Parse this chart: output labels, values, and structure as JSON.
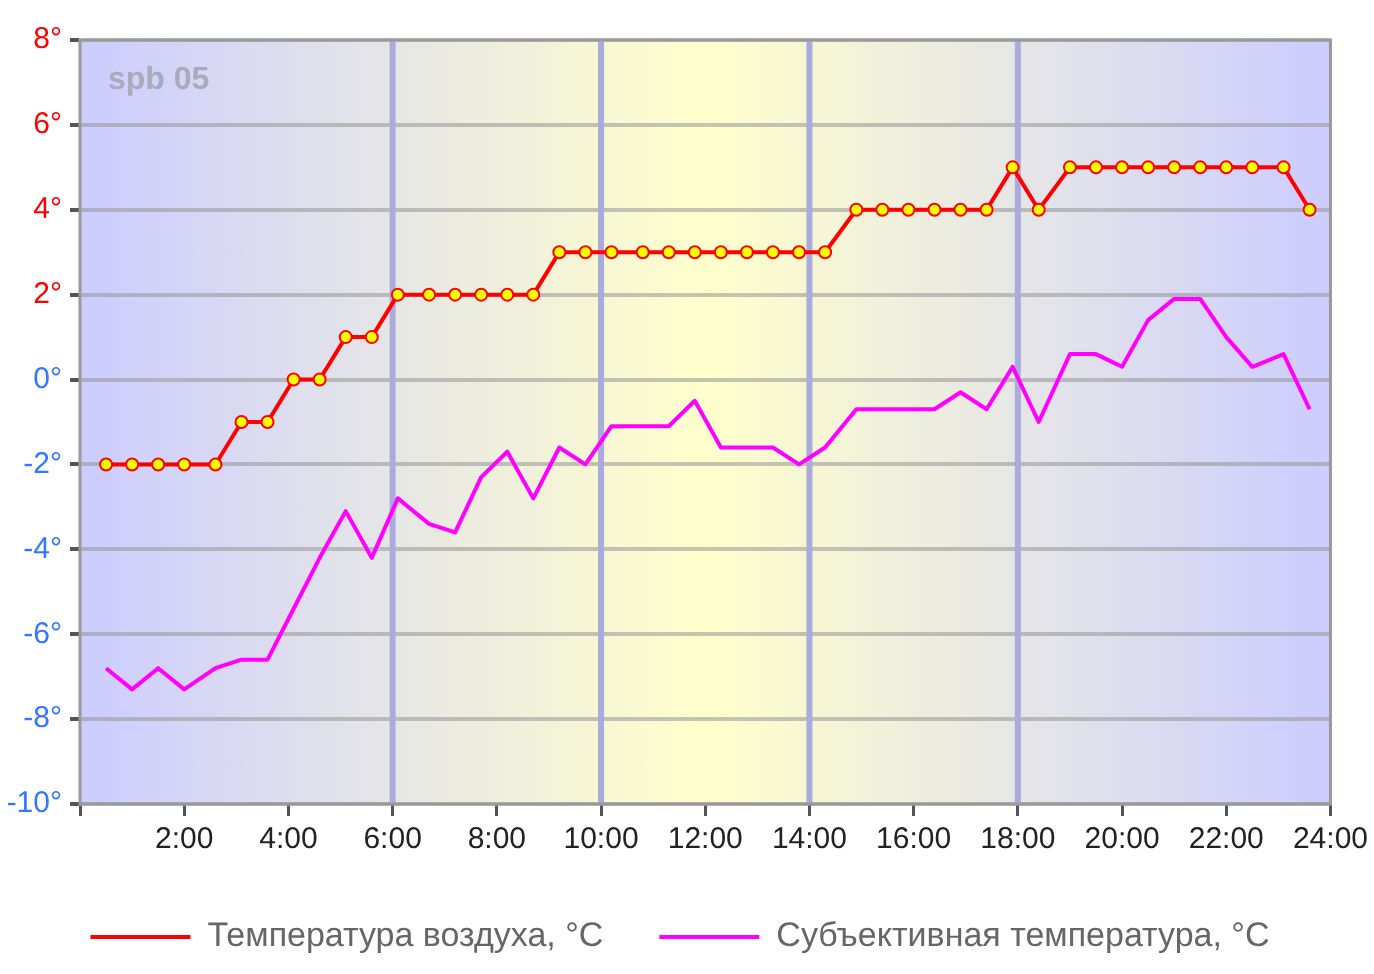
{
  "chart_data": {
    "type": "line",
    "annotations": [
      "spb 05"
    ],
    "x": [
      0.5,
      1.0,
      1.5,
      2.0,
      2.6,
      3.1,
      3.6,
      4.1,
      4.6,
      5.1,
      5.6,
      6.1,
      6.7,
      7.2,
      7.7,
      8.2,
      8.7,
      9.2,
      9.7,
      10.2,
      10.8,
      11.3,
      11.8,
      12.3,
      12.8,
      13.3,
      13.8,
      14.3,
      14.9,
      15.4,
      15.9,
      16.4,
      16.9,
      17.4,
      17.9,
      18.4,
      19.0,
      19.5,
      20.0,
      20.5,
      21.0,
      21.5,
      22.0,
      22.5,
      23.1,
      23.6
    ],
    "series": [
      {
        "name": "Температура воздуха, °C",
        "color": "#ff0000",
        "marker": "circle",
        "values": [
          -2,
          -2,
          -2,
          -2,
          -2,
          -1,
          -1,
          0,
          0,
          1,
          1,
          2,
          2,
          2,
          2,
          2,
          2,
          3,
          3,
          3,
          3,
          3,
          3,
          3,
          3,
          3,
          3,
          3,
          4,
          4,
          4,
          4,
          4,
          4,
          5,
          4,
          5,
          5,
          5,
          5,
          5,
          5,
          5,
          5,
          5,
          4
        ]
      },
      {
        "name": "Субъективная температура, °C",
        "color": "#ff00ff",
        "marker": "none",
        "values": [
          -6.8,
          -7.3,
          -6.8,
          -7.3,
          -6.8,
          -6.6,
          -6.6,
          -5.4,
          -4.2,
          -3.1,
          -4.2,
          -2.8,
          -3.4,
          -3.6,
          -2.3,
          -1.7,
          -2.8,
          -1.6,
          -2.0,
          -1.1,
          -1.1,
          -1.1,
          -0.5,
          -1.6,
          -1.6,
          -1.6,
          -2.0,
          -1.6,
          -0.7,
          -0.7,
          -0.7,
          -0.7,
          -0.3,
          -0.7,
          0.3,
          -1.0,
          0.6,
          0.6,
          0.3,
          1.4,
          1.9,
          1.9,
          1.0,
          0.3,
          0.6,
          -0.7
        ]
      }
    ],
    "xlim": [
      0,
      24
    ],
    "xticks": [
      {
        "value": 0,
        "label": null
      },
      {
        "value": 2,
        "label": "2:00"
      },
      {
        "value": 4,
        "label": "4:00"
      },
      {
        "value": 6,
        "label": "6:00"
      },
      {
        "value": 8,
        "label": "8:00"
      },
      {
        "value": 10,
        "label": "10:00"
      },
      {
        "value": 12,
        "label": "12:00"
      },
      {
        "value": 14,
        "label": "14:00"
      },
      {
        "value": 16,
        "label": "16:00"
      },
      {
        "value": 18,
        "label": "18:00"
      },
      {
        "value": 20,
        "label": "20:00"
      },
      {
        "value": 22,
        "label": "22:00"
      },
      {
        "value": 24,
        "label": "24:00"
      }
    ],
    "ylim": [
      -10,
      8
    ],
    "yticks": [
      {
        "value": -10,
        "label": "-10°"
      },
      {
        "value": -8,
        "label": "-8°"
      },
      {
        "value": -6,
        "label": "-6°"
      },
      {
        "value": -4,
        "label": "-4°"
      },
      {
        "value": -2,
        "label": "-2°"
      },
      {
        "value": 0,
        "label": "0°"
      },
      {
        "value": 2,
        "label": "2°"
      },
      {
        "value": 4,
        "label": "4°"
      },
      {
        "value": 6,
        "label": "6°"
      },
      {
        "value": 8,
        "label": "8°"
      }
    ],
    "ref_lines": [
      {
        "axis": "x",
        "value": 6,
        "color": "#aaaadd"
      },
      {
        "axis": "x",
        "value": 10,
        "color": "#aaaadd"
      },
      {
        "axis": "x",
        "value": 14,
        "color": "#aaaadd"
      },
      {
        "axis": "x",
        "value": 18,
        "color": "#aaaadd"
      }
    ],
    "grid": "y",
    "legend": "bottom"
  }
}
